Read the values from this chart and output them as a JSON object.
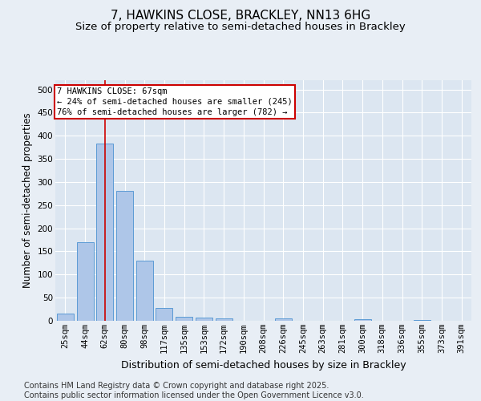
{
  "title1": "7, HAWKINS CLOSE, BRACKLEY, NN13 6HG",
  "title2": "Size of property relative to semi-detached houses in Brackley",
  "xlabel": "Distribution of semi-detached houses by size in Brackley",
  "ylabel": "Number of semi-detached properties",
  "categories": [
    "25sqm",
    "44sqm",
    "62sqm",
    "80sqm",
    "98sqm",
    "117sqm",
    "135sqm",
    "153sqm",
    "172sqm",
    "190sqm",
    "208sqm",
    "226sqm",
    "245sqm",
    "263sqm",
    "281sqm",
    "300sqm",
    "318sqm",
    "336sqm",
    "355sqm",
    "373sqm",
    "391sqm"
  ],
  "values": [
    15,
    170,
    383,
    280,
    130,
    28,
    9,
    7,
    6,
    0,
    0,
    5,
    0,
    0,
    0,
    3,
    0,
    0,
    2,
    0,
    0
  ],
  "bar_color": "#aec6e8",
  "bar_edge_color": "#5b9bd5",
  "red_line_x": 2,
  "annotation_line1": "7 HAWKINS CLOSE: 67sqm",
  "annotation_line2": "← 24% of semi-detached houses are smaller (245)",
  "annotation_line3": "76% of semi-detached houses are larger (782) →",
  "annotation_box_color": "#ffffff",
  "annotation_edge_color": "#cc0000",
  "footer_text": "Contains HM Land Registry data © Crown copyright and database right 2025.\nContains public sector information licensed under the Open Government Licence v3.0.",
  "ylim": [
    0,
    520
  ],
  "yticks": [
    0,
    50,
    100,
    150,
    200,
    250,
    300,
    350,
    400,
    450,
    500
  ],
  "bg_color": "#e8eef5",
  "plot_bg_color": "#dce6f1",
  "grid_color": "#ffffff",
  "title1_fontsize": 11,
  "title2_fontsize": 9.5,
  "tick_fontsize": 7.5,
  "ylabel_fontsize": 8.5,
  "xlabel_fontsize": 9,
  "footer_fontsize": 7
}
